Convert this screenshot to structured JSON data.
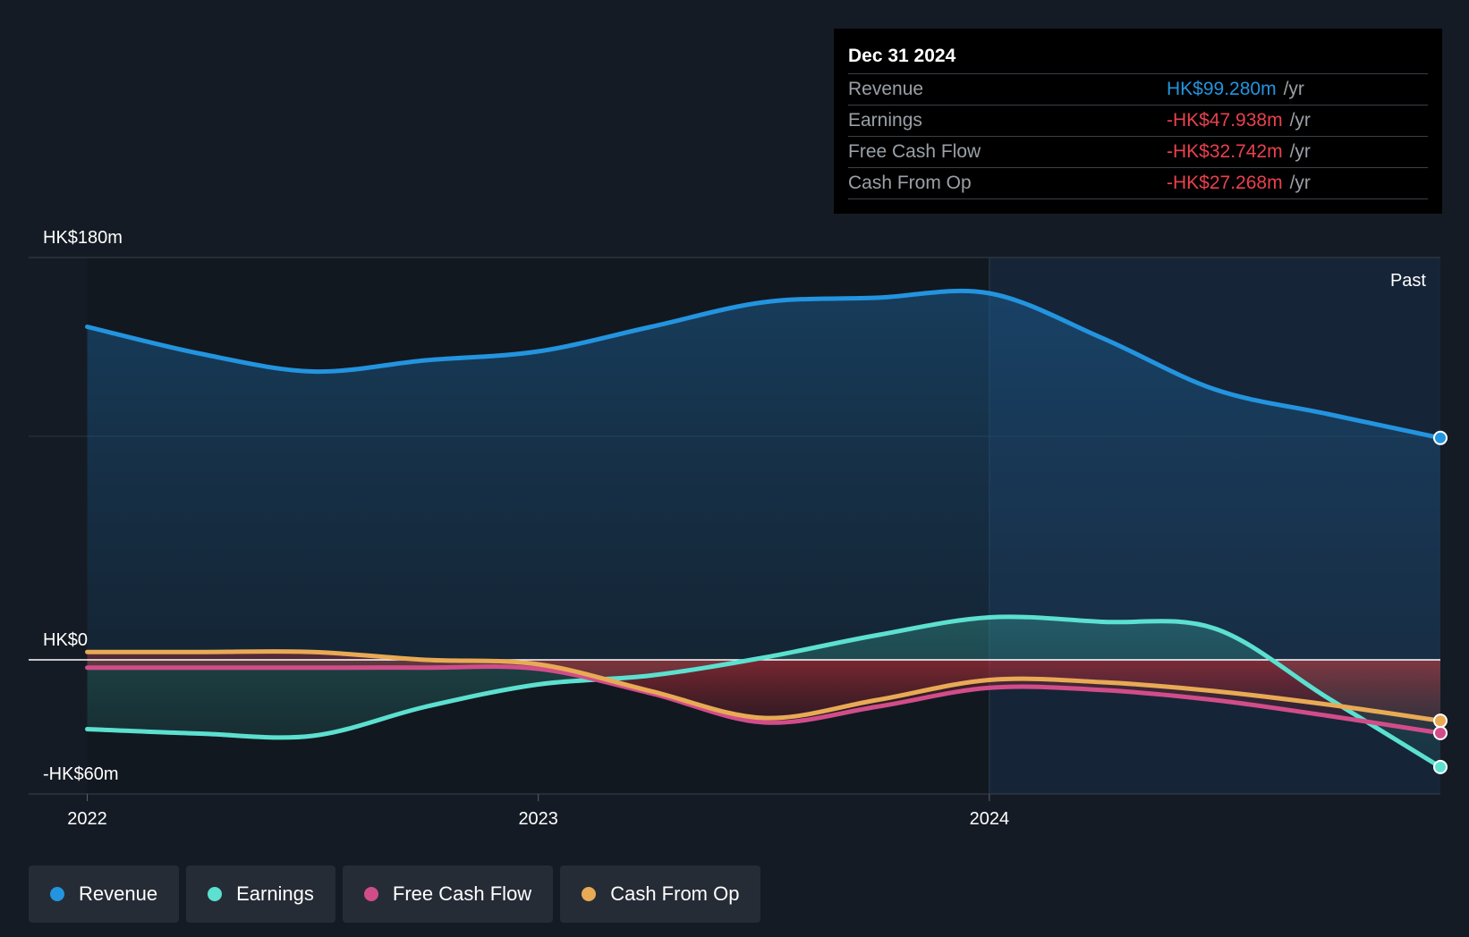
{
  "chart_data": {
    "type": "line",
    "title": "",
    "y_unit_labels": {
      "top": "HK$180m",
      "zero": "HK$0",
      "bottom": "-HK$60m"
    },
    "ylim": [
      -60,
      180
    ],
    "x_ticks": [
      "2022",
      "2023",
      "2024"
    ],
    "xlim": [
      2021.87,
      2025.0
    ],
    "forecast_region_label": "Past",
    "series": [
      {
        "name": "Revenue",
        "color": "#2394df",
        "x": [
          2022.0,
          2022.25,
          2022.5,
          2022.75,
          2023.0,
          2023.25,
          2023.5,
          2023.75,
          2024.0,
          2024.25,
          2024.5,
          2024.75,
          2025.0
        ],
        "values": [
          149,
          137,
          129,
          134,
          138,
          149,
          160,
          162,
          164,
          144,
          121,
          110,
          99.28
        ]
      },
      {
        "name": "Earnings",
        "color": "#5ce0d0",
        "x": [
          2022.0,
          2022.25,
          2022.5,
          2022.75,
          2023.0,
          2023.25,
          2023.5,
          2023.75,
          2024.0,
          2024.25,
          2024.5,
          2024.75,
          2025.0
        ],
        "values": [
          -31,
          -33,
          -34,
          -21,
          -11,
          -7,
          1,
          11,
          19,
          17,
          14,
          -17,
          -47.938
        ]
      },
      {
        "name": "Free Cash Flow",
        "color": "#d14d8a",
        "x": [
          2022.0,
          2022.25,
          2022.5,
          2022.75,
          2023.0,
          2023.25,
          2023.5,
          2023.75,
          2024.0,
          2024.25,
          2024.5,
          2024.75,
          2025.0
        ],
        "values": [
          -3.5,
          -3.5,
          -3.5,
          -3.5,
          -4,
          -15,
          -28,
          -21,
          -12.5,
          -13.5,
          -18,
          -25,
          -32.742
        ]
      },
      {
        "name": "Cash From Op",
        "color": "#e8aa55",
        "x": [
          2022.0,
          2022.25,
          2022.5,
          2022.75,
          2023.0,
          2023.25,
          2023.5,
          2023.75,
          2024.0,
          2024.25,
          2024.5,
          2024.75,
          2025.0
        ],
        "values": [
          3.5,
          3.5,
          3.5,
          0,
          -2,
          -14,
          -26,
          -18,
          -9,
          -10,
          -14,
          -20,
          -27.268
        ]
      }
    ]
  },
  "tooltip": {
    "date": "Dec 31 2024",
    "rows": [
      {
        "label": "Revenue",
        "value": "HK$99.280m",
        "unit": "/yr",
        "color": "#2394df"
      },
      {
        "label": "Earnings",
        "value": "-HK$47.938m",
        "unit": "/yr",
        "color": "#e8414d"
      },
      {
        "label": "Free Cash Flow",
        "value": "-HK$32.742m",
        "unit": "/yr",
        "color": "#e8414d"
      },
      {
        "label": "Cash From Op",
        "value": "-HK$27.268m",
        "unit": "/yr",
        "color": "#e8414d"
      }
    ]
  },
  "legend": [
    {
      "label": "Revenue",
      "color": "#2394df"
    },
    {
      "label": "Earnings",
      "color": "#5ce0d0"
    },
    {
      "label": "Free Cash Flow",
      "color": "#d14d8a"
    },
    {
      "label": "Cash From Op",
      "color": "#e8aa55"
    }
  ]
}
